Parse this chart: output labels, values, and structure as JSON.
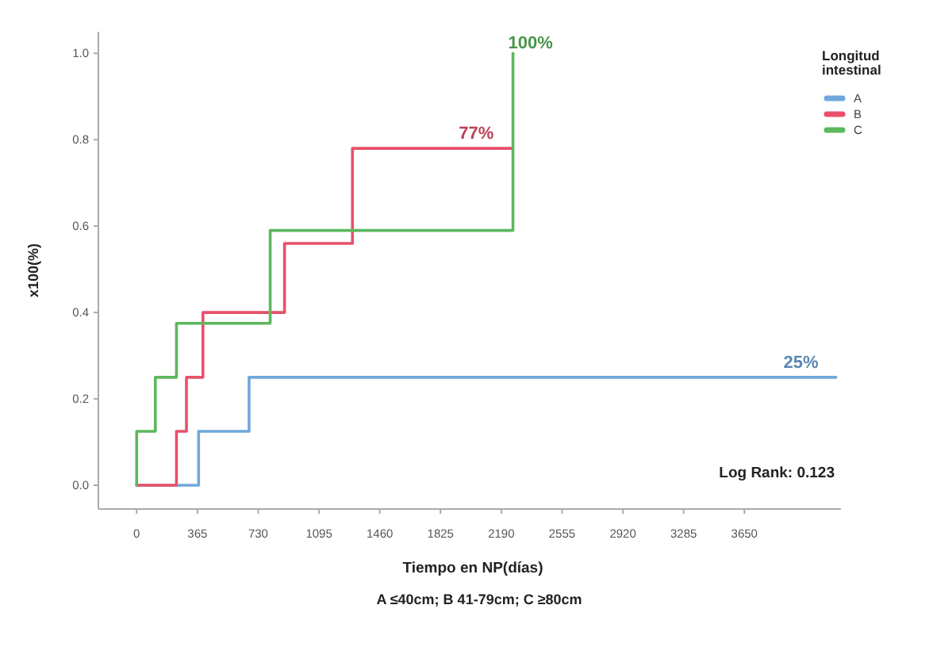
{
  "chart_data": {
    "type": "step",
    "xlabel": "Tiempo en NP(días)",
    "ylabel": "x100(%)",
    "legend_title": "Longitud intestinal",
    "legend": "right",
    "xlim": [
      -230,
      4230
    ],
    "xticks": [
      0,
      365,
      730,
      1095,
      1460,
      1825,
      2190,
      2555,
      2920,
      3285,
      3650
    ],
    "ylim": [
      -0.055,
      1.05
    ],
    "yticks": [
      {
        "value": 0,
        "label": "0.0"
      },
      0.2,
      0.4,
      0.6,
      0.8,
      {
        "value": 1,
        "label": "1.0"
      }
    ],
    "series": [
      {
        "name": "A",
        "color": "#6fa8dc",
        "x": [
          0,
          372,
          675,
          4200
        ],
        "values": [
          0,
          0.125,
          0.25,
          0.25
        ]
      },
      {
        "name": "B",
        "color": "#e8506a",
        "x": [
          0,
          239,
          299,
          398,
          888,
          1296,
          2260
        ],
        "values": [
          0,
          0.125,
          0.25,
          0.4,
          0.56,
          0.78,
          0.78
        ]
      },
      {
        "name": "C",
        "color": "#5cb85c",
        "x": [
          0,
          0,
          112,
          239,
          802,
          2260
        ],
        "values": [
          0,
          0.125,
          0.25,
          0.375,
          0.59,
          1
        ]
      }
    ],
    "annotations": [
      {
        "text": "100%",
        "x": 2260,
        "y": 1
      },
      {
        "text": "77%",
        "x": 2040,
        "y": 0.78
      },
      {
        "text": "25%",
        "x": 3990,
        "y": 0.25
      },
      "Log Rank: 0.123",
      "A ≤40cm; B 41-79cm; C ≥80cm"
    ]
  }
}
